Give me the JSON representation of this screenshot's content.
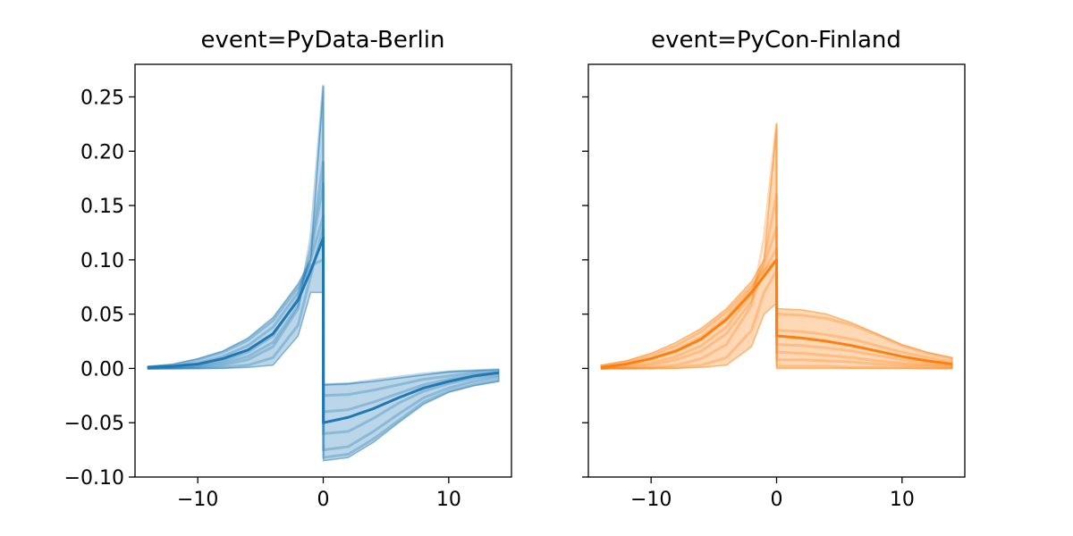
{
  "chart_data": [
    {
      "type": "line",
      "title": "event=PyData-Berlin",
      "color": "#1f77b4",
      "xlim": [
        -15,
        15
      ],
      "ylim": [
        -0.1,
        0.28
      ],
      "xticks": [
        -10,
        0,
        10
      ],
      "xtick_labels": [
        "−10",
        "0",
        "10"
      ],
      "yticks": [
        -0.1,
        -0.05,
        0,
        0.05,
        0.1,
        0.15,
        0.2,
        0.25
      ],
      "ytick_labels": [
        "−0.10",
        "−0.05",
        "0.00",
        "0.05",
        "0.10",
        "0.15",
        "0.20",
        "0.25"
      ],
      "show_ytick_labels": true,
      "x": [
        -14,
        -12,
        -10,
        -8,
        -6,
        -4,
        -2,
        -1,
        0,
        0.01,
        2,
        4,
        6,
        8,
        10,
        12,
        14
      ],
      "band_upper": [
        0.002,
        0.004,
        0.009,
        0.016,
        0.028,
        0.047,
        0.078,
        0.1,
        0.26,
        -0.015,
        -0.014,
        -0.012,
        -0.009,
        -0.006,
        -0.003,
        -0.002,
        -0.001
      ],
      "band_lower": [
        0.0,
        0.0,
        0.0,
        0.0,
        0.001,
        0.003,
        0.03,
        0.07,
        0.07,
        -0.085,
        -0.082,
        -0.068,
        -0.05,
        -0.033,
        -0.022,
        -0.016,
        -0.012
      ],
      "mean": [
        0.001,
        0.002,
        0.004,
        0.009,
        0.017,
        0.032,
        0.063,
        0.09,
        0.12,
        -0.05,
        -0.045,
        -0.037,
        -0.027,
        -0.018,
        -0.012,
        -0.007,
        -0.004
      ],
      "series": [
        {
          "values": [
            0.001,
            0.003,
            0.008,
            0.015,
            0.026,
            0.044,
            0.075,
            0.095,
            0.1,
            -0.015,
            -0.014,
            -0.011,
            -0.008,
            -0.005,
            -0.003,
            -0.002,
            -0.001
          ]
        },
        {
          "values": [
            0.001,
            0.002,
            0.005,
            0.011,
            0.021,
            0.038,
            0.07,
            0.1,
            0.14,
            -0.025,
            -0.024,
            -0.02,
            -0.015,
            -0.01,
            -0.007,
            -0.004,
            -0.003
          ]
        },
        {
          "values": [
            0.0,
            0.001,
            0.003,
            0.007,
            0.015,
            0.03,
            0.065,
            0.11,
            0.19,
            -0.04,
            -0.038,
            -0.031,
            -0.023,
            -0.015,
            -0.01,
            -0.006,
            -0.004
          ]
        },
        {
          "values": [
            0.0,
            0.0,
            0.001,
            0.003,
            0.008,
            0.02,
            0.055,
            0.12,
            0.26,
            -0.06,
            -0.058,
            -0.046,
            -0.032,
            -0.021,
            -0.014,
            -0.009,
            -0.006
          ]
        },
        {
          "values": [
            0.0,
            0.001,
            0.002,
            0.005,
            0.011,
            0.024,
            0.058,
            0.105,
            0.17,
            -0.075,
            -0.072,
            -0.058,
            -0.042,
            -0.027,
            -0.018,
            -0.012,
            -0.008
          ]
        },
        {
          "values": [
            0.0,
            0.0,
            0.0,
            0.001,
            0.003,
            0.01,
            0.04,
            0.085,
            0.13,
            -0.082,
            -0.079,
            -0.065,
            -0.048,
            -0.031,
            -0.021,
            -0.015,
            -0.011
          ]
        }
      ]
    },
    {
      "type": "line",
      "title": "event=PyCon-Finland",
      "color": "#ff7f0e",
      "xlim": [
        -15,
        15
      ],
      "ylim": [
        -0.1,
        0.28
      ],
      "xticks": [
        -10,
        0,
        10
      ],
      "xtick_labels": [
        "−10",
        "0",
        "10"
      ],
      "yticks": [
        -0.1,
        -0.05,
        0,
        0.05,
        0.1,
        0.15,
        0.2,
        0.25
      ],
      "ytick_labels": [
        "−0.10",
        "−0.05",
        "0.00",
        "0.05",
        "0.10",
        "0.15",
        "0.20",
        "0.25"
      ],
      "show_ytick_labels": false,
      "x": [
        -14,
        -12,
        -10,
        -8,
        -6,
        -4,
        -2,
        -1,
        0,
        0.01,
        2,
        4,
        6,
        8,
        10,
        12,
        14
      ],
      "band_upper": [
        0.003,
        0.007,
        0.014,
        0.024,
        0.037,
        0.055,
        0.08,
        0.1,
        0.225,
        0.055,
        0.054,
        0.05,
        0.042,
        0.032,
        0.022,
        0.015,
        0.01
      ],
      "band_lower": [
        0.0,
        0.0,
        0.0,
        0.0,
        0.001,
        0.003,
        0.02,
        0.05,
        0.06,
        0.0,
        0.0,
        0.0,
        0.0,
        0.0,
        0.0,
        0.0,
        0.0
      ],
      "mean": [
        0.001,
        0.004,
        0.009,
        0.016,
        0.027,
        0.045,
        0.07,
        0.085,
        0.1,
        0.03,
        0.028,
        0.025,
        0.021,
        0.016,
        0.011,
        0.007,
        0.004
      ],
      "series": [
        {
          "values": [
            0.002,
            0.006,
            0.012,
            0.021,
            0.034,
            0.052,
            0.076,
            0.09,
            0.1,
            0.05,
            0.049,
            0.046,
            0.04,
            0.031,
            0.021,
            0.014,
            0.009
          ]
        },
        {
          "values": [
            0.001,
            0.004,
            0.009,
            0.017,
            0.029,
            0.047,
            0.073,
            0.095,
            0.13,
            0.035,
            0.034,
            0.031,
            0.027,
            0.021,
            0.015,
            0.01,
            0.006
          ]
        },
        {
          "values": [
            0.0,
            0.002,
            0.005,
            0.011,
            0.021,
            0.038,
            0.068,
            0.1,
            0.16,
            0.022,
            0.021,
            0.019,
            0.016,
            0.012,
            0.008,
            0.005,
            0.003
          ]
        },
        {
          "values": [
            0.0,
            0.0,
            0.001,
            0.003,
            0.009,
            0.022,
            0.058,
            0.12,
            0.225,
            0.015,
            0.014,
            0.012,
            0.01,
            0.007,
            0.005,
            0.003,
            0.002
          ]
        },
        {
          "values": [
            0.0,
            0.001,
            0.003,
            0.008,
            0.016,
            0.032,
            0.062,
            0.09,
            0.11,
            0.008,
            0.008,
            0.007,
            0.006,
            0.004,
            0.003,
            0.002,
            0.001
          ]
        },
        {
          "values": [
            0.0,
            0.0,
            0.0,
            0.001,
            0.003,
            0.01,
            0.035,
            0.07,
            0.09,
            0.002,
            0.002,
            0.002,
            0.001,
            0.001,
            0.001,
            0.0,
            0.0
          ]
        }
      ]
    }
  ]
}
